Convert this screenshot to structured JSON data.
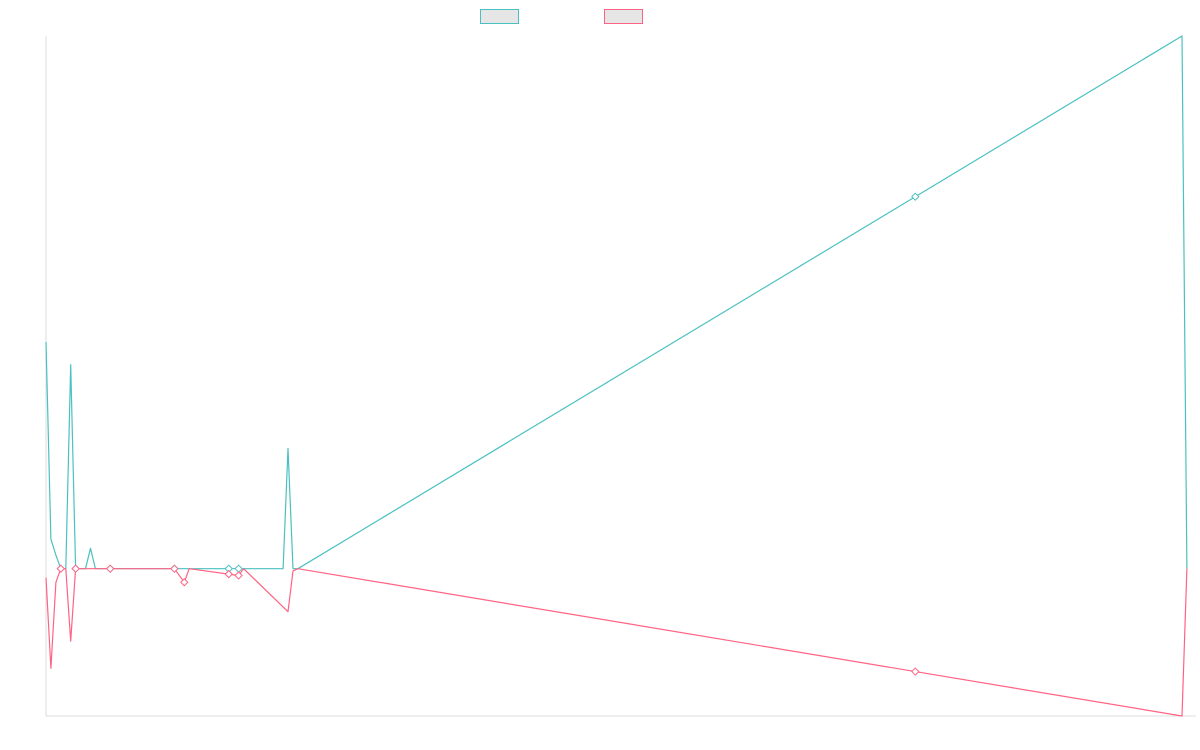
{
  "chart_data": {
    "type": "line",
    "title": "",
    "xlabel": "",
    "ylabel": "",
    "grid": false,
    "legend_position": "top-center",
    "x_count": 231,
    "ylim": [
      -65,
      235
    ],
    "series": [
      {
        "name": "",
        "color": "#4bc0c0",
        "points": [
          [
            0,
            100
          ],
          [
            1,
            13
          ],
          [
            2,
            6
          ],
          [
            3,
            0
          ],
          [
            4,
            0
          ],
          [
            5,
            90
          ],
          [
            6,
            0
          ],
          [
            7,
            0
          ],
          [
            8,
            0
          ],
          [
            9,
            9
          ],
          [
            10,
            0
          ],
          [
            11,
            0
          ],
          [
            12,
            0
          ],
          [
            13,
            0
          ],
          [
            14,
            0
          ],
          [
            26,
            0
          ],
          [
            28,
            0
          ],
          [
            37,
            0
          ],
          [
            39,
            0
          ],
          [
            40,
            0
          ],
          [
            48,
            0
          ],
          [
            49,
            53
          ],
          [
            50,
            0
          ],
          [
            51,
            0
          ],
          [
            230,
            235
          ],
          [
            231,
            0
          ]
        ],
        "markers": [
          3,
          6,
          13,
          26,
          37,
          39,
          176
        ]
      },
      {
        "name": "",
        "color": "#ff6384",
        "points": [
          [
            0,
            -4
          ],
          [
            1,
            -44
          ],
          [
            2,
            -6
          ],
          [
            3,
            0
          ],
          [
            4,
            0
          ],
          [
            5,
            -32
          ],
          [
            6,
            0
          ],
          [
            7,
            0
          ],
          [
            14,
            0
          ],
          [
            26,
            0
          ],
          [
            28,
            -6
          ],
          [
            29,
            0
          ],
          [
            39,
            -3
          ],
          [
            40,
            0
          ],
          [
            49,
            -19
          ],
          [
            50,
            -1
          ],
          [
            51,
            0
          ],
          [
            230,
            -65
          ],
          [
            231,
            0
          ]
        ],
        "markers": [
          3,
          6,
          13,
          26,
          28,
          37,
          39,
          176
        ]
      }
    ]
  }
}
